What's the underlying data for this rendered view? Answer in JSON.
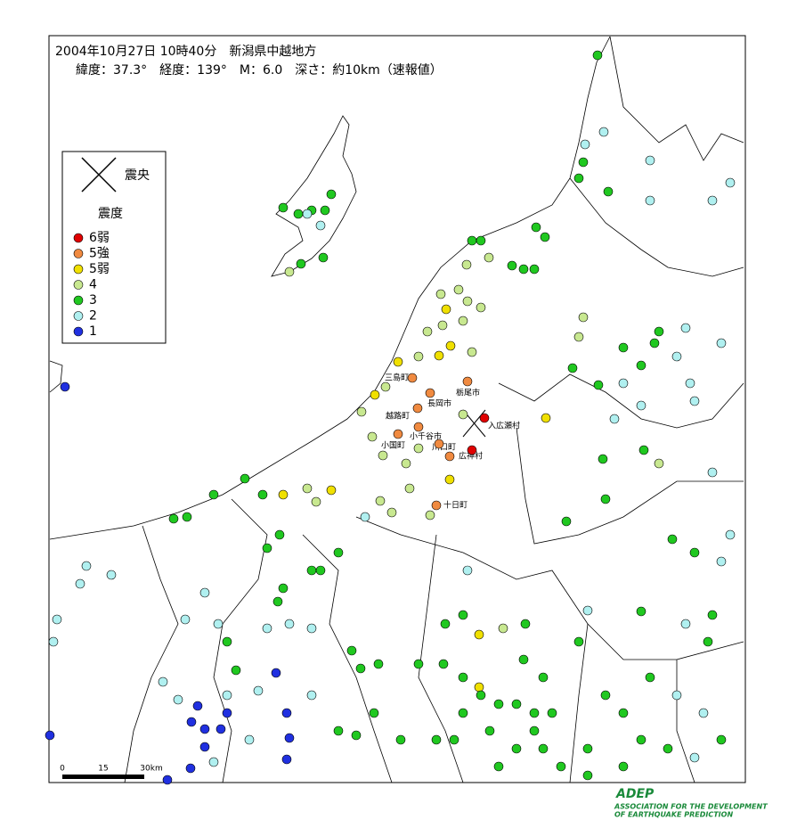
{
  "header": {
    "line1": "2004年10月27日 10時40分　新潟県中越地方",
    "line2": "緯度：37.3°　経度：139°　M：6.0　深さ：約10km（速報値）"
  },
  "legend": {
    "epicenter": "震央",
    "intensity_title": "震度",
    "items": [
      {
        "label": "6弱",
        "color": "#e00000"
      },
      {
        "label": "5強",
        "color": "#f08a40"
      },
      {
        "label": "5弱",
        "color": "#f0e000"
      },
      {
        "label": "4",
        "color": "#c8e890"
      },
      {
        "label": "3",
        "color": "#20c820"
      },
      {
        "label": "2",
        "color": "#b0f0f0"
      },
      {
        "label": "1",
        "color": "#2030e0"
      }
    ]
  },
  "places": [
    "三島町",
    "栃尾市",
    "長岡市",
    "越路町",
    "入広瀬村",
    "小国町",
    "小千谷市",
    "川口町",
    "広神村",
    "十日町"
  ],
  "scale": {
    "labels": [
      "0",
      "15",
      "30km"
    ]
  },
  "logo": {
    "name": "ADEP",
    "line1": "ASSOCIATION FOR THE DEVELOPMENT",
    "line2": "OF EARTHQUAKE PREDICTION"
  }
}
